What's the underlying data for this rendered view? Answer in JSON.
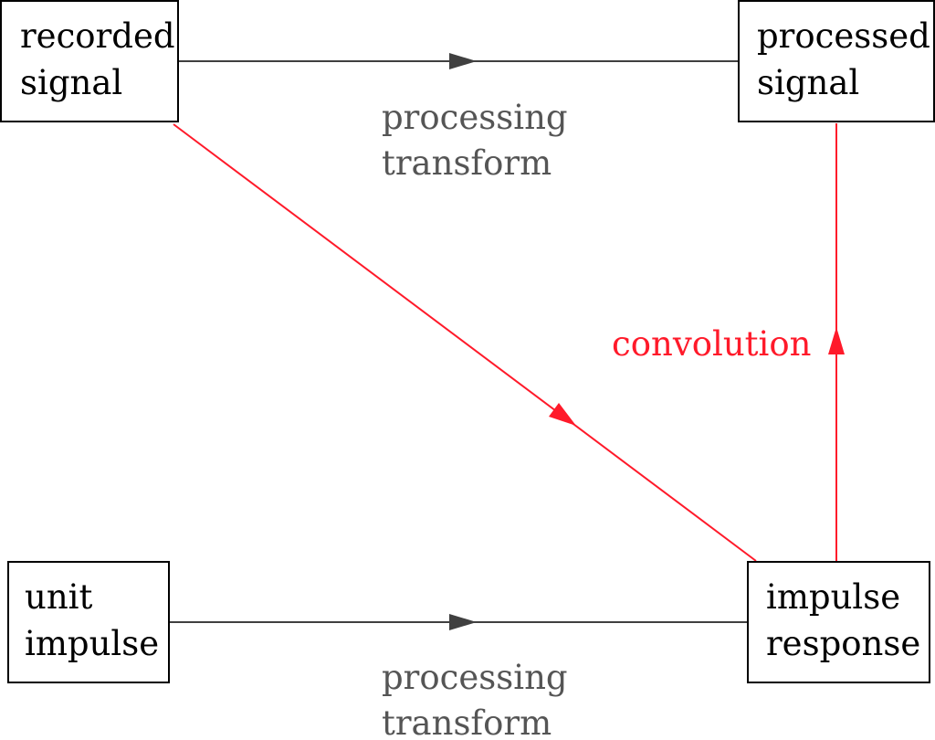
{
  "colors": {
    "default_edge": "#404040",
    "default_label": "#555555",
    "convolution": "#ff1a2a",
    "node_border": "#000000",
    "background": "#ffffff"
  },
  "nodes": [
    {
      "id": "recorded",
      "lines": [
        "recorded",
        "signal"
      ]
    },
    {
      "id": "processed",
      "lines": [
        "processed",
        "signal"
      ]
    },
    {
      "id": "unit",
      "lines": [
        "unit",
        "impulse"
      ]
    },
    {
      "id": "response",
      "lines": [
        "impulse",
        "response"
      ]
    }
  ],
  "edges": [
    {
      "id": "top",
      "from": "recorded signal",
      "to": "processed signal",
      "label": [
        "processing",
        "transform"
      ],
      "color": "#404040",
      "label_color": "#555555"
    },
    {
      "id": "bottom",
      "from": "unit impulse",
      "to": "impulse response",
      "label": [
        "processing",
        "transform"
      ],
      "color": "#404040",
      "label_color": "#555555"
    },
    {
      "id": "diag",
      "from": "recorded signal",
      "to": "impulse response",
      "label": [],
      "color": "#ff1a2a"
    },
    {
      "id": "vert",
      "from": "impulse response",
      "to": "processed signal",
      "label": [
        "convolution"
      ],
      "color": "#ff1a2a",
      "label_color": "#ff1a2a"
    }
  ]
}
